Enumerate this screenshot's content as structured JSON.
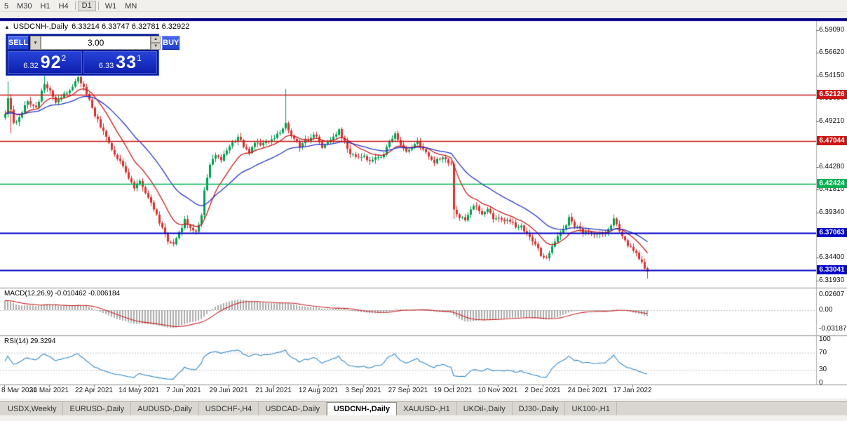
{
  "toolbar": {
    "timeframes": [
      {
        "label": "5",
        "active": false,
        "sep_after": false
      },
      {
        "label": "M30",
        "active": false,
        "sep_after": false
      },
      {
        "label": "H1",
        "active": false,
        "sep_after": false
      },
      {
        "label": "H4",
        "active": false,
        "sep_after": true
      },
      {
        "label": "D1",
        "active": true,
        "sep_after": true
      },
      {
        "label": "W1",
        "active": false,
        "sep_after": false
      },
      {
        "label": "MN",
        "active": false,
        "sep_after": false
      }
    ]
  },
  "chart": {
    "title_symbol": "USDCNH-,Daily",
    "title_ohlc": "6.33214 6.33747 6.32781 6.32922",
    "collapse_icon": "▲",
    "price_axis": {
      "ticks": [
        "6.59090",
        "6.56620",
        "6.54150",
        "6.51680",
        "6.49210",
        "6.46750",
        "6.44280",
        "6.41810",
        "6.39340",
        "6.36870",
        "6.34400",
        "6.31930"
      ]
    },
    "levels": [
      {
        "label": "6.52126",
        "price": 6.52126,
        "color": "#cc1414",
        "kind": "resistance-line"
      },
      {
        "label": "6.47044",
        "price": 6.47044,
        "color": "#cc1414",
        "kind": "resistance-line"
      },
      {
        "label": "6.42424",
        "price": 6.42424,
        "color": "#00b050",
        "kind": "mid-line"
      },
      {
        "label": "6.37063",
        "price": 6.37063,
        "color": "#0000c8",
        "kind": "support-line"
      },
      {
        "label": "6.33041",
        "price": 6.33041,
        "color": "#0000c8",
        "kind": "support-line"
      }
    ],
    "date_axis": {
      "labels": [
        "8 Mar 2021",
        "30 Mar 2021",
        "22 Apr 2021",
        "14 May 2021",
        "7 Jun 2021",
        "29 Jun 2021",
        "21 Jul 2021",
        "12 Aug 2021",
        "3 Sep 2021",
        "27 Sep 2021",
        "19 Oct 2021",
        "10 Nov 2021",
        "2 Dec 2021",
        "24 Dec 2021",
        "17 Jan 2022"
      ],
      "step_candles": 16
    },
    "candles": {
      "count": 230,
      "anchors": [
        [
          0,
          6.5
        ],
        [
          1,
          6.516
        ],
        [
          3,
          6.489
        ],
        [
          5,
          6.498
        ],
        [
          8,
          6.512
        ],
        [
          11,
          6.506
        ],
        [
          14,
          6.533
        ],
        [
          16,
          6.526
        ],
        [
          18,
          6.512
        ],
        [
          21,
          6.521
        ],
        [
          24,
          6.531
        ],
        [
          26,
          6.54
        ],
        [
          28,
          6.528
        ],
        [
          30,
          6.514
        ],
        [
          32,
          6.498
        ],
        [
          35,
          6.482
        ],
        [
          38,
          6.462
        ],
        [
          41,
          6.448
        ],
        [
          44,
          6.432
        ],
        [
          46,
          6.42
        ],
        [
          48,
          6.428
        ],
        [
          50,
          6.415
        ],
        [
          52,
          6.404
        ],
        [
          54,
          6.39
        ],
        [
          56,
          6.377
        ],
        [
          58,
          6.363
        ],
        [
          60,
          6.359
        ],
        [
          62,
          6.371
        ],
        [
          64,
          6.384
        ],
        [
          66,
          6.377
        ],
        [
          68,
          6.373
        ],
        [
          70,
          6.391
        ],
        [
          71,
          6.418
        ],
        [
          73,
          6.447
        ],
        [
          75,
          6.455
        ],
        [
          77,
          6.45
        ],
        [
          79,
          6.46
        ],
        [
          81,
          6.468
        ],
        [
          83,
          6.476
        ],
        [
          85,
          6.465
        ],
        [
          87,
          6.459
        ],
        [
          89,
          6.47
        ],
        [
          91,
          6.464
        ],
        [
          93,
          6.469
        ],
        [
          95,
          6.473
        ],
        [
          97,
          6.477
        ],
        [
          99,
          6.483
        ],
        [
          100,
          6.492
        ],
        [
          101,
          6.482
        ],
        [
          103,
          6.473
        ],
        [
          105,
          6.464
        ],
        [
          107,
          6.47
        ],
        [
          109,
          6.474
        ],
        [
          111,
          6.477
        ],
        [
          113,
          6.463
        ],
        [
          115,
          6.47
        ],
        [
          117,
          6.477
        ],
        [
          119,
          6.483
        ],
        [
          121,
          6.47
        ],
        [
          123,
          6.458
        ],
        [
          125,
          6.452
        ],
        [
          127,
          6.455
        ],
        [
          129,
          6.452
        ],
        [
          131,
          6.449
        ],
        [
          133,
          6.453
        ],
        [
          135,
          6.458
        ],
        [
          137,
          6.47
        ],
        [
          139,
          6.479
        ],
        [
          141,
          6.466
        ],
        [
          143,
          6.458
        ],
        [
          145,
          6.466
        ],
        [
          147,
          6.468
        ],
        [
          149,
          6.461
        ],
        [
          151,
          6.455
        ],
        [
          153,
          6.448
        ],
        [
          155,
          6.452
        ],
        [
          157,
          6.45
        ],
        [
          159,
          6.444
        ],
        [
          160,
          6.396
        ],
        [
          162,
          6.388
        ],
        [
          164,
          6.384
        ],
        [
          166,
          6.395
        ],
        [
          168,
          6.402
        ],
        [
          170,
          6.391
        ],
        [
          172,
          6.396
        ],
        [
          174,
          6.386
        ],
        [
          176,
          6.389
        ],
        [
          178,
          6.382
        ],
        [
          180,
          6.385
        ],
        [
          182,
          6.379
        ],
        [
          184,
          6.377
        ],
        [
          186,
          6.368
        ],
        [
          188,
          6.361
        ],
        [
          190,
          6.355
        ],
        [
          191,
          6.348
        ],
        [
          193,
          6.345
        ],
        [
          195,
          6.357
        ],
        [
          197,
          6.367
        ],
        [
          199,
          6.374
        ],
        [
          201,
          6.387
        ],
        [
          203,
          6.379
        ],
        [
          205,
          6.374
        ],
        [
          207,
          6.371
        ],
        [
          209,
          6.37
        ],
        [
          211,
          6.368
        ],
        [
          213,
          6.371
        ],
        [
          215,
          6.374
        ],
        [
          217,
          6.387
        ],
        [
          219,
          6.375
        ],
        [
          221,
          6.363
        ],
        [
          223,
          6.354
        ],
        [
          225,
          6.349
        ],
        [
          227,
          6.34
        ],
        [
          229,
          6.3292
        ]
      ],
      "specials": {
        "1": {
          "h": 6.535
        },
        "2": {
          "l": 6.479
        },
        "14": {
          "h": 6.543
        },
        "26": {
          "h": 6.545
        },
        "60": {
          "l": 6.357
        },
        "100": {
          "h": 6.527
        },
        "160": {
          "l": 6.386
        },
        "229": {
          "l": 6.3215
        }
      }
    },
    "moving_averages": [
      {
        "period": 12,
        "color": "#cc1b1b"
      },
      {
        "period": 30,
        "color": "#2433c8"
      }
    ],
    "colors": {
      "up": "#00a050",
      "down": "#d93030",
      "macd_hist": "#ababab",
      "macd_signal": "#c82828",
      "rsi_line": "#3188cc"
    }
  },
  "macd": {
    "label": "MACD(12,26,9) -0.010462 -0.006184",
    "axis": [
      {
        "label": "0.02607",
        "value": 0.02607
      },
      {
        "label": "0.00",
        "value": 0
      },
      {
        "label": "-0.03187",
        "value": -0.03187
      }
    ],
    "fast": 12,
    "slow": 26,
    "signal": 9
  },
  "rsi": {
    "label": "RSI(14) 29.3294",
    "axis": [
      {
        "label": "100",
        "value": 100
      },
      {
        "label": "70",
        "value": 70
      },
      {
        "label": "30",
        "value": 30
      },
      {
        "label": "0",
        "value": 0
      }
    ],
    "period": 14
  },
  "trade_panel": {
    "sell_label": "SELL",
    "buy_label": "BUY",
    "volume": "3.00",
    "dropdown_icon": "▼",
    "spin_up_icon": "▲",
    "spin_down_icon": "▼",
    "bid_small": "6.32",
    "bid_big": "92",
    "bid_sup": "2",
    "ask_small": "6.33",
    "ask_big": "33",
    "ask_sup": "1"
  },
  "tabs": {
    "items": [
      "USDX,Weekly",
      "EURUSD-,Daily",
      "AUDUSD-,Daily",
      "USDCHF-,H4",
      "USDCAD-,Daily",
      "USDCNH-,Daily",
      "XAUUSD-,H1",
      "UKOil-,Daily",
      "DJ30-,Daily",
      "UK100-,H1"
    ],
    "active_index": 5
  }
}
